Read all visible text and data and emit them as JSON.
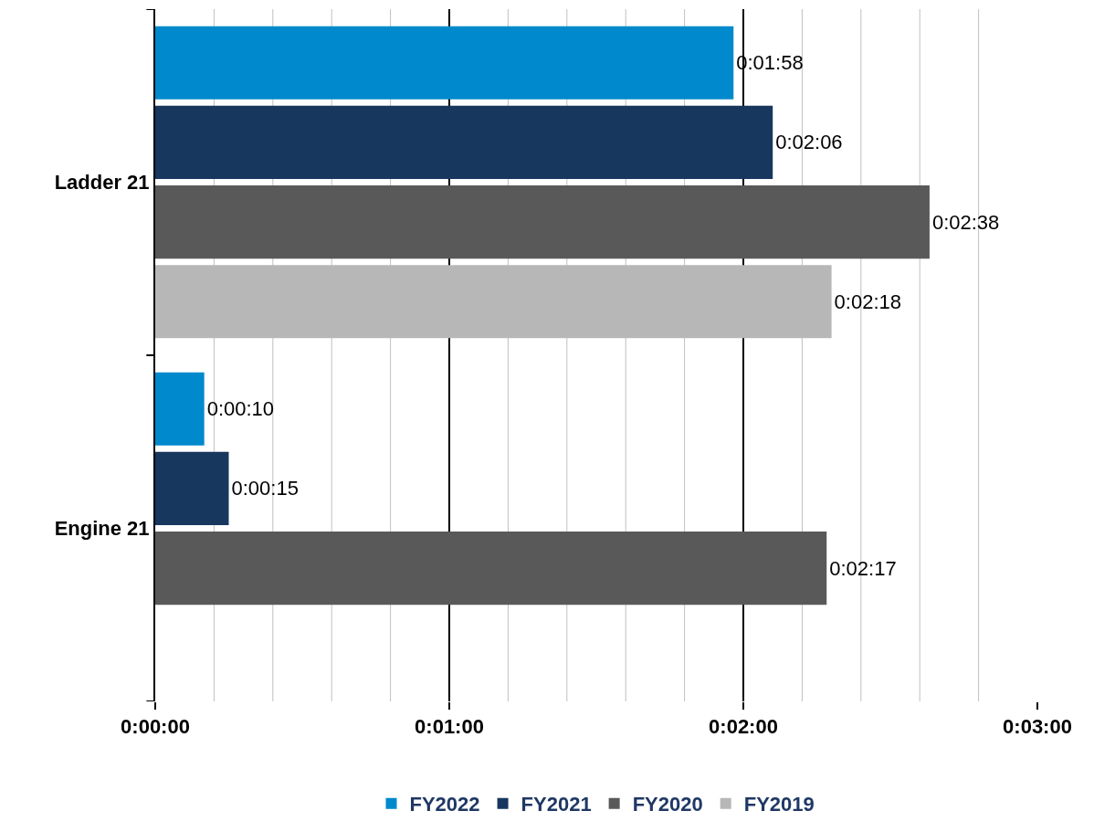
{
  "chart_data": {
    "type": "bar",
    "orientation": "horizontal",
    "categories": [
      "Ladder 21",
      "Engine 21"
    ],
    "series": [
      {
        "name": "FY2022",
        "color": "#0089cc",
        "values": [
          118,
          10
        ],
        "value_labels": [
          "0:01:58",
          "0:00:10"
        ]
      },
      {
        "name": "FY2021",
        "color": "#17375e",
        "values": [
          126,
          15
        ],
        "value_labels": [
          "0:02:06",
          "0:00:15"
        ]
      },
      {
        "name": "FY2020",
        "color": "#595959",
        "values": [
          158,
          137
        ],
        "value_labels": [
          "0:02:38",
          "0:02:17"
        ]
      },
      {
        "name": "FY2019",
        "color": "#b7b7b7",
        "values": [
          138,
          null
        ],
        "value_labels": [
          "0:02:18",
          null
        ]
      }
    ],
    "xlim": [
      0,
      180
    ],
    "xticks": [
      {
        "value": 0,
        "label": "0:00:00"
      },
      {
        "value": 12,
        "label": null
      },
      {
        "value": 24,
        "label": null
      },
      {
        "value": 36,
        "label": null
      },
      {
        "value": 48,
        "label": null
      },
      {
        "value": 60,
        "label": "0:01:00"
      },
      {
        "value": 72,
        "label": null
      },
      {
        "value": 84,
        "label": null
      },
      {
        "value": 96,
        "label": null
      },
      {
        "value": 108,
        "label": null
      },
      {
        "value": 120,
        "label": "0:02:00"
      },
      {
        "value": 132,
        "label": null
      },
      {
        "value": 144,
        "label": null
      },
      {
        "value": 156,
        "label": null
      },
      {
        "value": 168,
        "label": null
      },
      {
        "value": 180,
        "label": "0:03:00"
      }
    ],
    "grid": "x",
    "legend": "bottom"
  }
}
